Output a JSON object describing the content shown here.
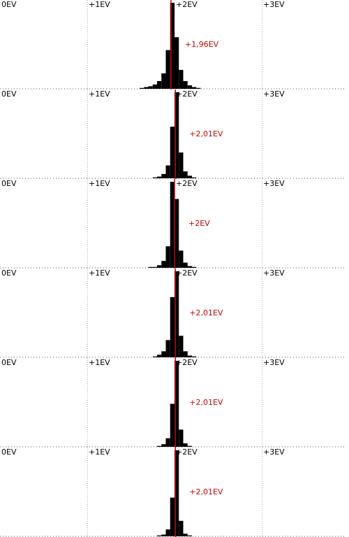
{
  "chart_data": [
    {
      "type": "histogram",
      "xlim": [
        0,
        4
      ],
      "ylim": [
        0,
        100
      ],
      "color": "#000000",
      "xticks": [
        {
          "value": 0,
          "label": "0EV"
        },
        {
          "value": 1,
          "label": "+1EV"
        },
        {
          "value": 2,
          "label": "+2EV"
        },
        {
          "value": 3,
          "label": "+3EV"
        }
      ],
      "bins": [
        1.6,
        1.65,
        1.7,
        1.75,
        1.8,
        1.85,
        1.9,
        1.95,
        2,
        2.05,
        2.1,
        2.15,
        2.2,
        2.25,
        2.3,
        2.35,
        2.4
      ],
      "values": [
        1,
        2,
        3,
        5,
        9,
        18,
        45,
        100,
        60,
        22,
        9,
        4,
        2,
        1,
        0,
        0
      ],
      "marker": {
        "value": 1.96,
        "label": "+1,96EV",
        "color": "#cc0000"
      }
    },
    {
      "type": "histogram",
      "xlim": [
        0,
        4
      ],
      "ylim": [
        0,
        100
      ],
      "color": "#000000",
      "xticks": [
        {
          "value": 0,
          "label": "0EV"
        },
        {
          "value": 1,
          "label": "+1EV"
        },
        {
          "value": 2,
          "label": "+2EV"
        },
        {
          "value": 3,
          "label": "+3EV"
        }
      ],
      "bins": [
        1.6,
        1.65,
        1.7,
        1.75,
        1.8,
        1.85,
        1.9,
        1.95,
        2,
        2.05,
        2.1,
        2.15,
        2.2,
        2.25,
        2.3,
        2.35,
        2.4
      ],
      "values": [
        0,
        0,
        0,
        1,
        2,
        5,
        15,
        60,
        100,
        30,
        8,
        3,
        1,
        0,
        0,
        0
      ],
      "marker": {
        "value": 2.01,
        "label": "+2,01EV",
        "color": "#cc0000"
      }
    },
    {
      "type": "histogram",
      "xlim": [
        0,
        4
      ],
      "ylim": [
        0,
        100
      ],
      "color": "#000000",
      "xticks": [
        {
          "value": 0,
          "label": "0EV"
        },
        {
          "value": 1,
          "label": "+1EV"
        },
        {
          "value": 2,
          "label": "+2EV"
        },
        {
          "value": 3,
          "label": "+3EV"
        }
      ],
      "bins": [
        1.6,
        1.65,
        1.7,
        1.75,
        1.8,
        1.85,
        1.9,
        1.95,
        2,
        2.05,
        2.1,
        2.15,
        2.2,
        2.25,
        2.3,
        2.35,
        2.4
      ],
      "values": [
        0,
        0,
        1,
        1,
        3,
        8,
        25,
        100,
        80,
        20,
        6,
        2,
        1,
        0,
        0,
        0
      ],
      "marker": {
        "value": 2,
        "label": "+2EV",
        "color": "#cc0000"
      }
    },
    {
      "type": "histogram",
      "xlim": [
        0,
        4
      ],
      "ylim": [
        0,
        100
      ],
      "color": "#000000",
      "xticks": [
        {
          "value": 0,
          "label": "0EV"
        },
        {
          "value": 1,
          "label": "+1EV"
        },
        {
          "value": 2,
          "label": "+2EV"
        },
        {
          "value": 3,
          "label": "+3EV"
        }
      ],
      "bins": [
        1.6,
        1.65,
        1.7,
        1.75,
        1.8,
        1.85,
        1.9,
        1.95,
        2,
        2.05,
        2.1,
        2.15,
        2.2,
        2.25,
        2.3,
        2.35,
        2.4
      ],
      "values": [
        0,
        0,
        0,
        1,
        3,
        7,
        20,
        70,
        100,
        25,
        7,
        2,
        1,
        0,
        0,
        0
      ],
      "marker": {
        "value": 2.01,
        "label": "+2,01EV",
        "color": "#cc0000"
      }
    },
    {
      "type": "histogram",
      "xlim": [
        0,
        4
      ],
      "ylim": [
        0,
        100
      ],
      "color": "#000000",
      "xticks": [
        {
          "value": 0,
          "label": "0EV"
        },
        {
          "value": 1,
          "label": "+1EV"
        },
        {
          "value": 2,
          "label": "+2EV"
        },
        {
          "value": 3,
          "label": "+3EV"
        }
      ],
      "bins": [
        1.6,
        1.65,
        1.7,
        1.75,
        1.8,
        1.85,
        1.9,
        1.95,
        2,
        2.05,
        2.1,
        2.15,
        2.2,
        2.25,
        2.3,
        2.35,
        2.4
      ],
      "values": [
        0,
        0,
        0,
        0,
        1,
        3,
        10,
        50,
        100,
        20,
        4,
        1,
        0,
        0,
        0,
        0
      ],
      "marker": {
        "value": 2.01,
        "label": "+2,01EV",
        "color": "#cc0000"
      }
    },
    {
      "type": "histogram",
      "xlim": [
        0,
        4
      ],
      "ylim": [
        0,
        100
      ],
      "color": "#000000",
      "xticks": [
        {
          "value": 0,
          "label": "0EV"
        },
        {
          "value": 1,
          "label": "+1EV"
        },
        {
          "value": 2,
          "label": "+2EV"
        },
        {
          "value": 3,
          "label": "+3EV"
        }
      ],
      "bins": [
        1.6,
        1.65,
        1.7,
        1.75,
        1.8,
        1.85,
        1.9,
        1.95,
        2,
        2.05,
        2.1,
        2.15,
        2.2,
        2.25,
        2.3,
        2.35,
        2.4
      ],
      "values": [
        0,
        0,
        0,
        0,
        1,
        2,
        8,
        45,
        100,
        18,
        3,
        1,
        0,
        0,
        0,
        0
      ],
      "marker": {
        "value": 2.01,
        "label": "+2,01EV",
        "color": "#cc0000"
      }
    }
  ]
}
